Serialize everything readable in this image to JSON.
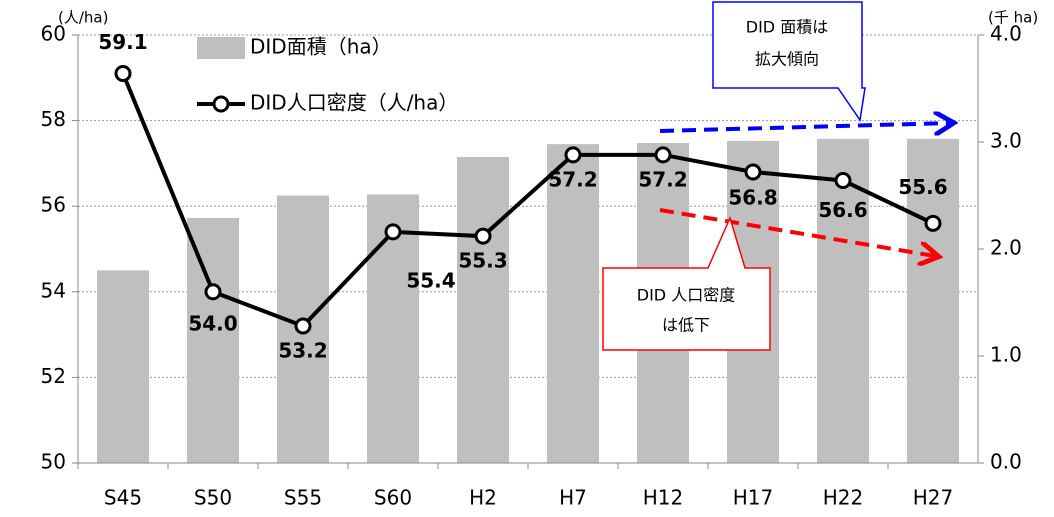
{
  "chart_data": {
    "type": "bar_line",
    "categories": [
      "S45",
      "S50",
      "S55",
      "S60",
      "H2",
      "H7",
      "H12",
      "H17",
      "H22",
      "H27"
    ],
    "series": [
      {
        "name": "DID面積（ha）",
        "type": "bar",
        "axis": "y2",
        "color": "#bfbfbf",
        "values": [
          1.8,
          2.29,
          2.5,
          2.51,
          2.86,
          2.98,
          2.99,
          3.01,
          3.03,
          3.03
        ]
      },
      {
        "name": "DID人口密度（人/ha）",
        "type": "line",
        "color": "#000000",
        "values": [
          59.1,
          54.0,
          53.2,
          55.4,
          55.3,
          57.2,
          57.2,
          56.8,
          56.6,
          55.6
        ],
        "value_labels": [
          "59.1",
          "54.0",
          "53.2",
          "55.4",
          "55.3",
          "57.2",
          "57.2",
          "56.8",
          "56.6",
          "55.6"
        ]
      }
    ],
    "ylim": [
      50,
      60
    ],
    "yticks": [
      50,
      52,
      54,
      56,
      58,
      60
    ],
    "y2lim": [
      0,
      4
    ],
    "y2ticks": [
      {
        "value": 0,
        "label": "0.0"
      },
      {
        "value": 1,
        "label": "1.0"
      },
      {
        "value": 2,
        "label": "2.0"
      },
      {
        "value": 3,
        "label": "3.0"
      },
      {
        "value": 4,
        "label": "4.0"
      }
    ],
    "y_unit": "(人/ha)",
    "y2_unit": "(千 ha)",
    "grid": true,
    "annotations": [
      {
        "lines": [
          "DID 面積は",
          "拡大傾向"
        ],
        "color": "#0000ff"
      },
      {
        "lines": [
          "DID 人口密度",
          "は低下"
        ],
        "color": "#ff0000"
      }
    ]
  }
}
